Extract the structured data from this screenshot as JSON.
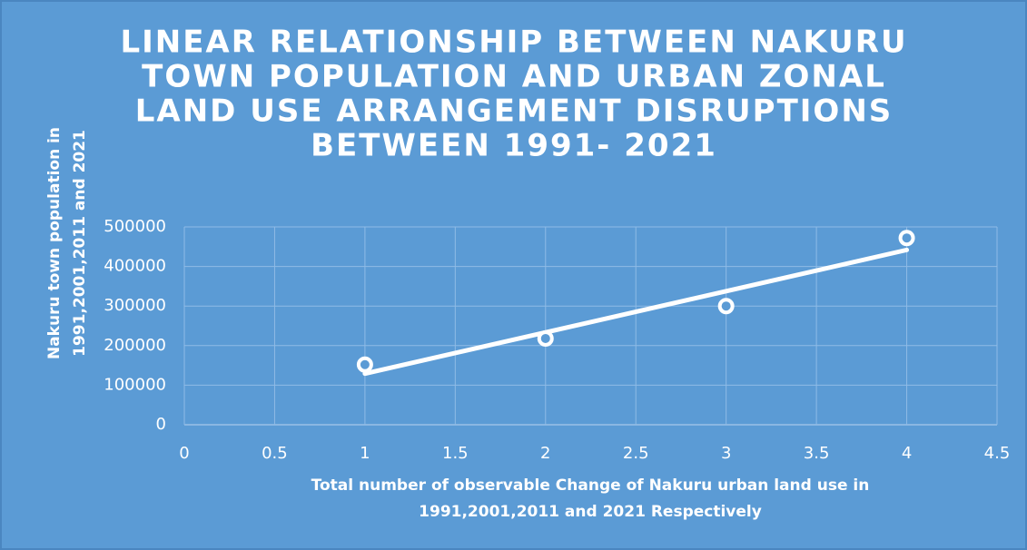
{
  "chart_data": {
    "type": "scatter",
    "title": [
      "LINEAR RELATIONSHIP BETWEEN NAKURU",
      "TOWN POPULATION AND URBAN ZONAL",
      "LAND USE ARRANGEMENT DISRUPTIONS",
      "BETWEEN 1991- 2021"
    ],
    "x_label": [
      "Total number of observable Change of Nakuru urban land use in",
      "1991,2001,2011 and 2021 Respectively"
    ],
    "y_label": [
      "Nakuru town population in",
      "1991,2001,2011 and 2021"
    ],
    "x": [
      1,
      2,
      3,
      4
    ],
    "values": [
      152000,
      218000,
      300000,
      472000
    ],
    "color": "#ffffff",
    "trendline": "linear",
    "xlim": [
      0,
      4.5
    ],
    "xticks": [
      0,
      0.5,
      1,
      1.5,
      2,
      2.5,
      3,
      3.5,
      4,
      4.5
    ],
    "ylim": [
      0,
      500000
    ],
    "yticks": [
      0,
      100000,
      200000,
      300000,
      400000,
      500000
    ],
    "grid": true
  }
}
